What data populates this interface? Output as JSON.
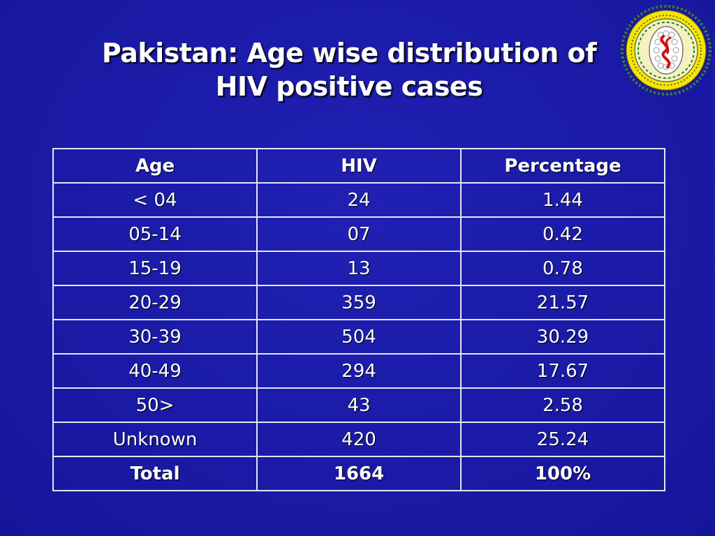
{
  "slide": {
    "title_line1": "Pakistan: Age wise distribution of",
    "title_line2": "HIV positive cases"
  },
  "table": {
    "headers": [
      "Age",
      "HIV",
      "Percentage"
    ],
    "rows": [
      [
        "< 04",
        "24",
        "1.44"
      ],
      [
        "05-14",
        "07",
        "0.42"
      ],
      [
        "15-19",
        "13",
        "0.78"
      ],
      [
        "20-29",
        "359",
        "21.57"
      ],
      [
        "30-39",
        "504",
        "30.29"
      ],
      [
        "40-49",
        "294",
        "17.67"
      ],
      [
        "50>",
        "43",
        "2.58"
      ],
      [
        "Unknown",
        "420",
        "25.24"
      ]
    ],
    "total": [
      "Total",
      "1664",
      "100%"
    ]
  },
  "colors": {
    "background": "#1818a8",
    "text": "#ffffff",
    "grid": "#e6e6f5",
    "logo_ring": "#f2e600",
    "logo_accent": "#cc1010",
    "logo_green": "#1a8a1a"
  },
  "icons": {
    "logo": "virus-emblem-icon"
  }
}
